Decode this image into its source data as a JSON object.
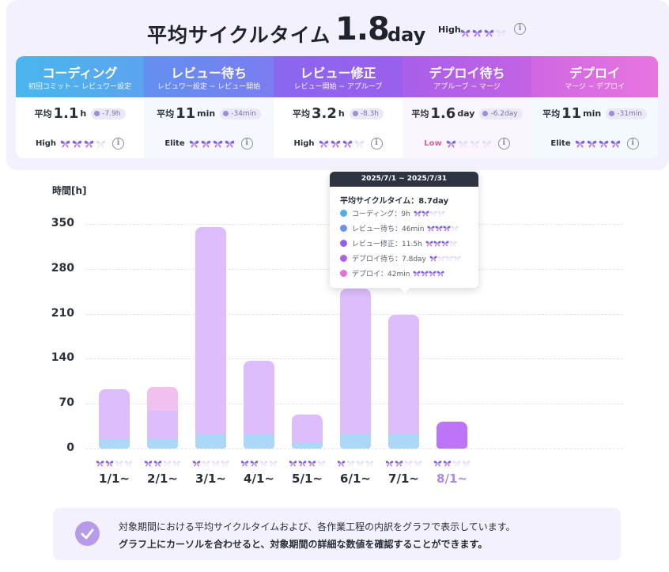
{
  "colors": {
    "coding": "#4db0ec",
    "review_wait": "#6f8ff0",
    "review_fix": "#8d62ec",
    "deploy_wait": "#b061e6",
    "deploy": "#e370dc",
    "bar_main": "#dcbcfa",
    "bar_light": "#f1c0ee",
    "bar_blue": "#acd8f8",
    "bar_highlight": "#bd74f7",
    "future_label": "#a98be4"
  },
  "header": {
    "title": "平均サイクルタイム",
    "value": "1.8",
    "unit": "day",
    "level": "High",
    "rating": 3,
    "rating_max": 4
  },
  "stages": [
    {
      "name": "コーディング",
      "range": "初回コミット ~ レビュワー設定",
      "avg_label": "平均",
      "value": "1.1",
      "unit": "h",
      "delta": "-7.9h",
      "grade": "High",
      "rating": 3
    },
    {
      "name": "レビュー待ち",
      "range": "レビュワー設定 ~ レビュー開始",
      "avg_label": "平均",
      "value": "11",
      "unit": "min",
      "delta": "-34min",
      "grade": "Elite",
      "rating": 4
    },
    {
      "name": "レビュー修正",
      "range": "レビュー開始 ~ アプルーブ",
      "avg_label": "平均",
      "value": "3.2",
      "unit": "h",
      "delta": "-8.3h",
      "grade": "High",
      "rating": 3
    },
    {
      "name": "デプロイ待ち",
      "range": "アプルーブ ~ マージ",
      "avg_label": "平均",
      "value": "1.6",
      "unit": "day",
      "delta": "-6.2day",
      "grade": "Low",
      "rating": 1
    },
    {
      "name": "デプロイ",
      "range": "マージ ~ デプロイ",
      "avg_label": "平均",
      "value": "11",
      "unit": "min",
      "delta": "-31min",
      "grade": "Elite",
      "rating": 4
    }
  ],
  "chart_data": {
    "type": "bar",
    "ylabel": "時間[h]",
    "ylim": [
      0,
      350
    ],
    "yticks": [
      "350",
      "280",
      "210",
      "140",
      "70",
      "0"
    ],
    "grid": true,
    "categories": [
      "1/1~",
      "2/1~",
      "3/1~",
      "4/1~",
      "5/1~",
      "6/1~",
      "7/1~",
      "8/1~"
    ],
    "values": [
      92,
      96,
      345,
      137,
      53,
      249,
      208,
      42
    ],
    "ratings": [
      2,
      2,
      1,
      2,
      3,
      1,
      2,
      2
    ],
    "highlighted_category": "8/1~"
  },
  "tooltip": {
    "range": "2025/7/1 ~ 2025/7/31",
    "summary": "平均サイクルタイム：8.7day",
    "items": [
      {
        "label": "コーディング：9h",
        "rating": 2
      },
      {
        "label": "レビュー待ち：46min",
        "rating": 3
      },
      {
        "label": "レビュー修正：11.5h",
        "rating": 3
      },
      {
        "label": "デプロイ待ち：7.8day",
        "rating": 1
      },
      {
        "label": "デプロイ：42min",
        "rating": 4
      }
    ]
  },
  "note": {
    "line1": "対象期間における平均サイクルタイムおよび、各作業工程の内訳をグラフで表示しています。",
    "line2": "グラフ上にカーソルを合わせると、対象期間の詳細な数値を確認することができます。"
  }
}
